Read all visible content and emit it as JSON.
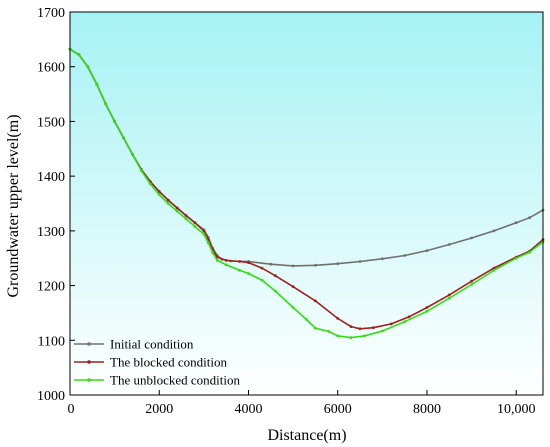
{
  "chart_data": {
    "type": "line",
    "title": "",
    "xlabel": "Distance(m)",
    "ylabel": "Groundwater upper level(m)",
    "xlim": [
      0,
      10600
    ],
    "ylim": [
      1000,
      1700
    ],
    "x_ticks": [
      {
        "value": 0,
        "label": "0"
      },
      {
        "value": 2000,
        "label": "2000"
      },
      {
        "value": 4000,
        "label": "4000"
      },
      {
        "value": 6000,
        "label": "6000"
      },
      {
        "value": 8000,
        "label": "8000"
      },
      {
        "value": 10000,
        "label": "10,000"
      }
    ],
    "y_ticks": [
      {
        "value": 1000,
        "label": "1000"
      },
      {
        "value": 1100,
        "label": "1100"
      },
      {
        "value": 1200,
        "label": "1200"
      },
      {
        "value": 1300,
        "label": "1300"
      },
      {
        "value": 1400,
        "label": "1400"
      },
      {
        "value": 1500,
        "label": "1500"
      },
      {
        "value": 1600,
        "label": "1600"
      },
      {
        "value": 1700,
        "label": "1700"
      }
    ],
    "background_gradient": {
      "top": "#a6f2f4",
      "bottom": "#ffffff"
    },
    "legend_position": "bottom-left",
    "grid": false,
    "series": [
      {
        "name": "Initial condition",
        "color": "#707070",
        "points": [
          [
            0,
            1632
          ],
          [
            200,
            1622
          ],
          [
            400,
            1600
          ],
          [
            600,
            1568
          ],
          [
            800,
            1532
          ],
          [
            1000,
            1500
          ],
          [
            1200,
            1470
          ],
          [
            1400,
            1440
          ],
          [
            1600,
            1412
          ],
          [
            1800,
            1390
          ],
          [
            2000,
            1372
          ],
          [
            2200,
            1356
          ],
          [
            2400,
            1342
          ],
          [
            2600,
            1328
          ],
          [
            2800,
            1315
          ],
          [
            3000,
            1302
          ],
          [
            3100,
            1288
          ],
          [
            3200,
            1268
          ],
          [
            3300,
            1255
          ],
          [
            3400,
            1248
          ],
          [
            3600,
            1245
          ],
          [
            4000,
            1244
          ],
          [
            4500,
            1239
          ],
          [
            5000,
            1236
          ],
          [
            5500,
            1237
          ],
          [
            6000,
            1240
          ],
          [
            6500,
            1244
          ],
          [
            7000,
            1249
          ],
          [
            7500,
            1255
          ],
          [
            8000,
            1264
          ],
          [
            8500,
            1275
          ],
          [
            9000,
            1287
          ],
          [
            9500,
            1300
          ],
          [
            10000,
            1315
          ],
          [
            10300,
            1324
          ],
          [
            10600,
            1338
          ]
        ]
      },
      {
        "name": "The blocked condition",
        "color": "#a02020",
        "points": [
          [
            0,
            1632
          ],
          [
            200,
            1622
          ],
          [
            400,
            1600
          ],
          [
            600,
            1568
          ],
          [
            800,
            1532
          ],
          [
            1000,
            1500
          ],
          [
            1200,
            1470
          ],
          [
            1400,
            1440
          ],
          [
            1600,
            1412
          ],
          [
            1800,
            1390
          ],
          [
            2000,
            1372
          ],
          [
            2200,
            1356
          ],
          [
            2400,
            1342
          ],
          [
            2600,
            1328
          ],
          [
            2800,
            1315
          ],
          [
            3000,
            1300
          ],
          [
            3100,
            1285
          ],
          [
            3200,
            1265
          ],
          [
            3300,
            1252
          ],
          [
            3500,
            1246
          ],
          [
            3800,
            1244
          ],
          [
            4000,
            1242
          ],
          [
            4300,
            1232
          ],
          [
            4600,
            1218
          ],
          [
            5000,
            1198
          ],
          [
            5500,
            1172
          ],
          [
            6000,
            1140
          ],
          [
            6300,
            1125
          ],
          [
            6500,
            1121
          ],
          [
            6800,
            1123
          ],
          [
            7200,
            1130
          ],
          [
            7600,
            1143
          ],
          [
            8000,
            1160
          ],
          [
            8500,
            1183
          ],
          [
            9000,
            1208
          ],
          [
            9500,
            1232
          ],
          [
            10000,
            1252
          ],
          [
            10300,
            1263
          ],
          [
            10600,
            1284
          ]
        ]
      },
      {
        "name": "The unblocked condition",
        "color": "#33dd11",
        "points": [
          [
            0,
            1632
          ],
          [
            200,
            1622
          ],
          [
            400,
            1600
          ],
          [
            600,
            1568
          ],
          [
            800,
            1532
          ],
          [
            1000,
            1500
          ],
          [
            1200,
            1470
          ],
          [
            1400,
            1440
          ],
          [
            1600,
            1410
          ],
          [
            1800,
            1386
          ],
          [
            2000,
            1366
          ],
          [
            2200,
            1350
          ],
          [
            2400,
            1336
          ],
          [
            2600,
            1322
          ],
          [
            2800,
            1308
          ],
          [
            3000,
            1294
          ],
          [
            3100,
            1278
          ],
          [
            3200,
            1260
          ],
          [
            3300,
            1246
          ],
          [
            3500,
            1238
          ],
          [
            3800,
            1228
          ],
          [
            4000,
            1222
          ],
          [
            4300,
            1210
          ],
          [
            4600,
            1190
          ],
          [
            5000,
            1160
          ],
          [
            5300,
            1138
          ],
          [
            5500,
            1122
          ],
          [
            5800,
            1116
          ],
          [
            6000,
            1108
          ],
          [
            6300,
            1105
          ],
          [
            6600,
            1108
          ],
          [
            7000,
            1117
          ],
          [
            7500,
            1134
          ],
          [
            8000,
            1153
          ],
          [
            8500,
            1177
          ],
          [
            9000,
            1202
          ],
          [
            9500,
            1228
          ],
          [
            10000,
            1250
          ],
          [
            10300,
            1261
          ],
          [
            10600,
            1280
          ]
        ]
      }
    ]
  }
}
